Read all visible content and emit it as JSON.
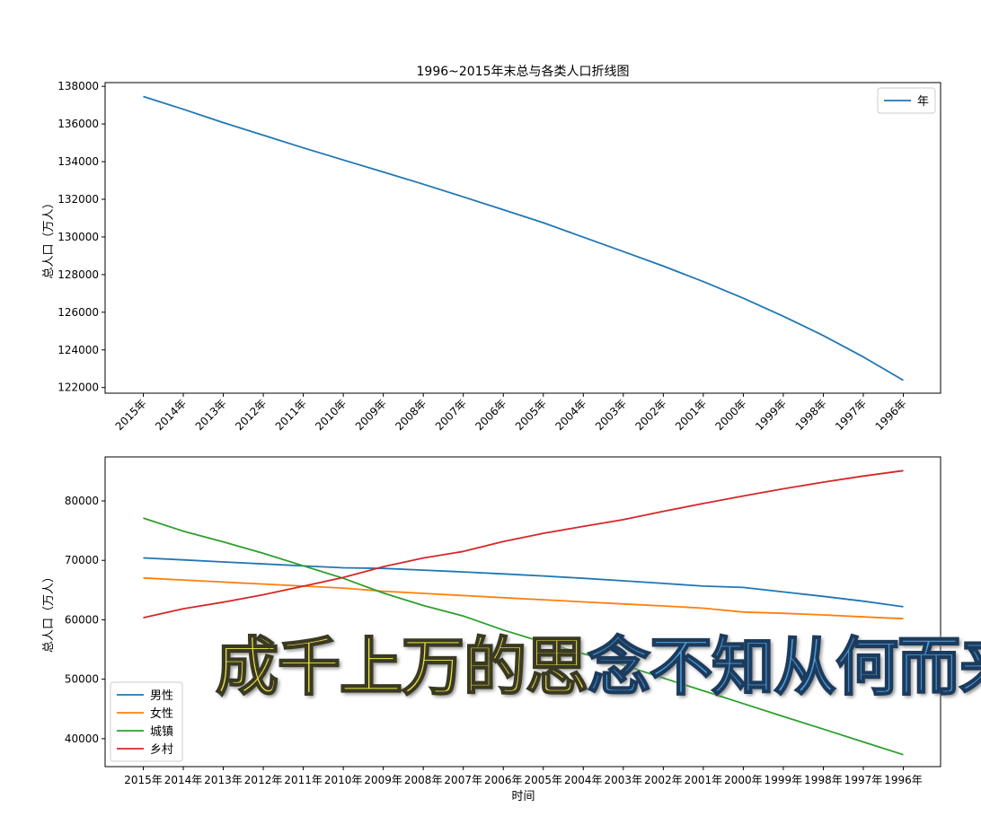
{
  "chart_data": [
    {
      "type": "line",
      "title": "1996~2015年末总与各类人口折线图",
      "ylabel": "总人口（万人）",
      "xlabel": "",
      "categories": [
        "2015年",
        "2014年",
        "2013年",
        "2012年",
        "2011年",
        "2010年",
        "2009年",
        "2008年",
        "2007年",
        "2006年",
        "2005年",
        "2004年",
        "2003年",
        "2002年",
        "2001年",
        "2000年",
        "1999年",
        "1998年",
        "1997年",
        "1996年"
      ],
      "ylim": [
        121700,
        138200
      ],
      "yticks": [
        122000,
        124000,
        126000,
        128000,
        130000,
        132000,
        134000,
        136000,
        138000
      ],
      "legend_position": "upper right",
      "series": [
        {
          "name": "年",
          "color": "#1f77b4",
          "values": [
            137462,
            136782,
            136072,
            135404,
            134735,
            134091,
            133450,
            132802,
            132129,
            131448,
            130756,
            129988,
            129227,
            128453,
            127627,
            126743,
            125786,
            124761,
            123626,
            122389
          ]
        }
      ]
    },
    {
      "type": "line",
      "title": "",
      "ylabel": "总人口（万人）",
      "xlabel": "时间",
      "categories": [
        "2015年",
        "2014年",
        "2013年",
        "2012年",
        "2011年",
        "2010年",
        "2009年",
        "2008年",
        "2007年",
        "2006年",
        "2005年",
        "2004年",
        "2003年",
        "2002年",
        "2001年",
        "2000年",
        "1999年",
        "1998年",
        "1997年",
        "1996年"
      ],
      "ylim": [
        35300,
        87400
      ],
      "yticks": [
        40000,
        50000,
        60000,
        70000,
        80000
      ],
      "legend_position": "lower left",
      "series": [
        {
          "name": "男性",
          "color": "#1f77b4",
          "values": [
            70414,
            70079,
            69728,
            69395,
            69068,
            68748,
            68647,
            68357,
            68048,
            67728,
            67375,
            66976,
            66556,
            66115,
            65672,
            65437,
            64692,
            63940,
            63131,
            62200
          ]
        },
        {
          "name": "女性",
          "color": "#ff7f0e",
          "values": [
            67048,
            66703,
            66344,
            66009,
            65667,
            65343,
            64803,
            64445,
            64081,
            63720,
            63381,
            63012,
            62671,
            62338,
            61955,
            61306,
            61094,
            60821,
            60495,
            60189
          ]
        },
        {
          "name": "城镇",
          "color": "#2ca02c",
          "values": [
            77116,
            74916,
            73111,
            71182,
            69079,
            66978,
            64512,
            62403,
            60633,
            58288,
            56212,
            54283,
            52376,
            50212,
            48064,
            45906,
            43748,
            41608,
            39449,
            37304
          ]
        },
        {
          "name": "乡村",
          "color": "#d62728",
          "values": [
            60346,
            61866,
            62961,
            64222,
            65656,
            67113,
            68938,
            70399,
            71496,
            73160,
            74544,
            75705,
            76851,
            78241,
            79563,
            80837,
            82038,
            83153,
            84177,
            85085
          ]
        }
      ]
    }
  ],
  "overlay_text": {
    "part_a": "成千上万的思",
    "part_b": "念不知从何而来"
  }
}
